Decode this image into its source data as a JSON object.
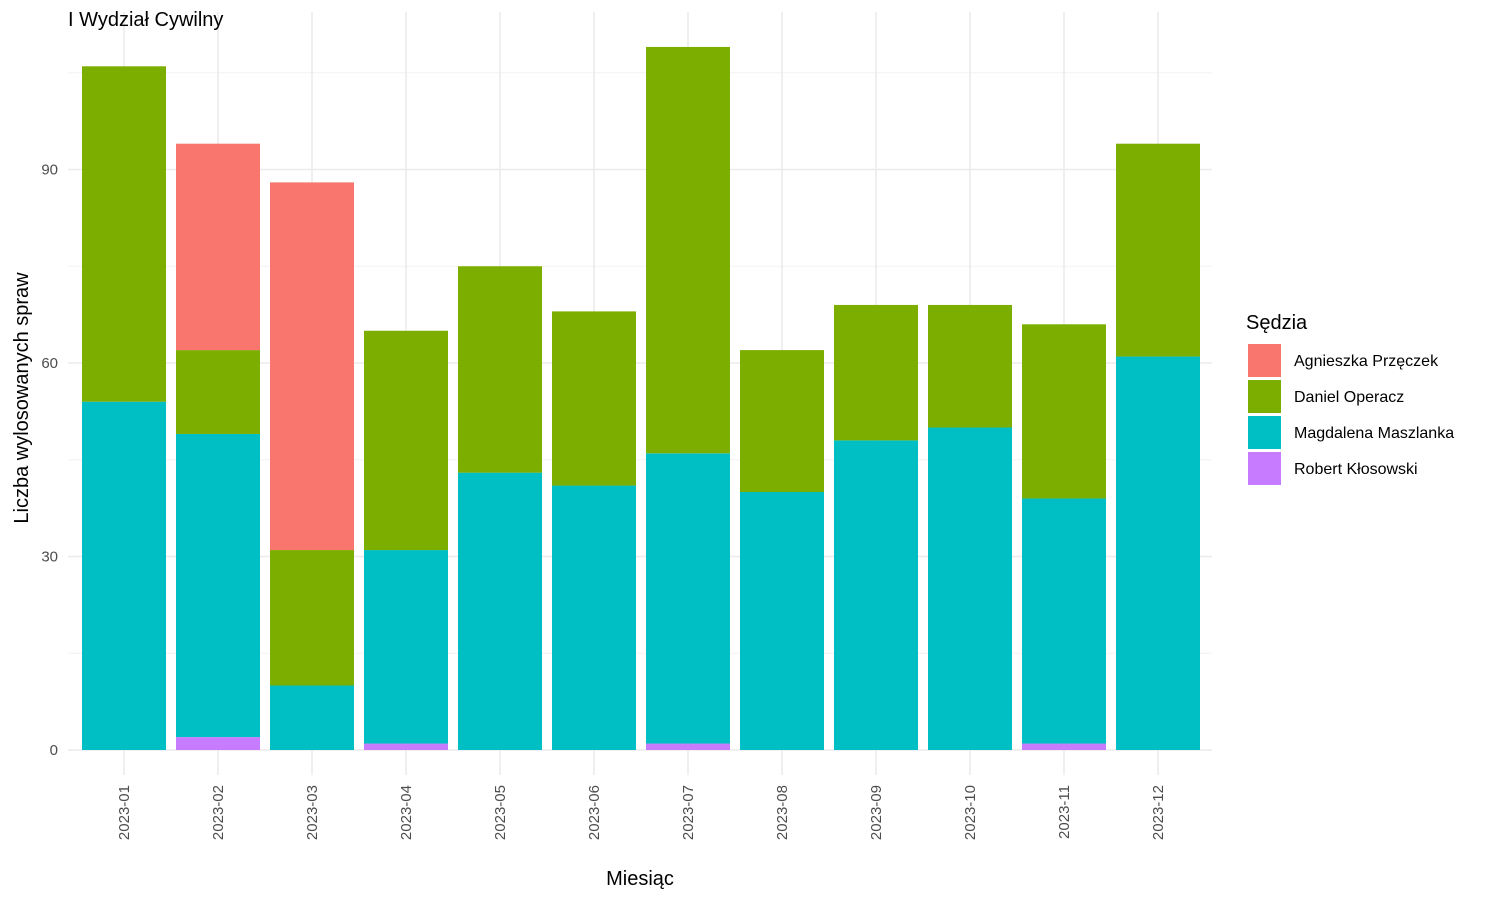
{
  "chart_data": {
    "type": "bar",
    "stacked": true,
    "title": "I Wydział Cywilny",
    "xlabel": "Miesiąc",
    "ylabel": "Liczba wylosowanych spraw",
    "ylim": [
      0,
      112
    ],
    "yticks": [
      0,
      30,
      60,
      90
    ],
    "grid": true,
    "legend": {
      "title": "Sędzia",
      "placement": "right"
    },
    "categories": [
      "2023-01",
      "2023-02",
      "2023-03",
      "2023-04",
      "2023-05",
      "2023-06",
      "2023-07",
      "2023-08",
      "2023-09",
      "2023-10",
      "2023-11",
      "2023-12"
    ],
    "series": [
      {
        "name": "Agnieszka Przęczek",
        "color": "#F8766D",
        "values": [
          0,
          32,
          57,
          0,
          0,
          0,
          0,
          0,
          0,
          0,
          0,
          0
        ]
      },
      {
        "name": "Daniel Operacz",
        "color": "#7CAE00",
        "values": [
          52,
          13,
          21,
          34,
          32,
          27,
          63,
          22,
          21,
          19,
          27,
          33
        ]
      },
      {
        "name": "Magdalena Maszlanka",
        "color": "#00BFC4",
        "values": [
          54,
          47,
          10,
          30,
          43,
          41,
          45,
          40,
          48,
          50,
          38,
          61
        ]
      },
      {
        "name": "Robert Kłosowski",
        "color": "#C77CFF",
        "values": [
          0,
          2,
          0,
          1,
          0,
          0,
          1,
          0,
          0,
          0,
          1,
          0
        ]
      }
    ],
    "stack_order_bottom_to_top": [
      "Robert Kłosowski",
      "Magdalena Maszlanka",
      "Daniel Operacz",
      "Agnieszka Przęczek"
    ]
  }
}
